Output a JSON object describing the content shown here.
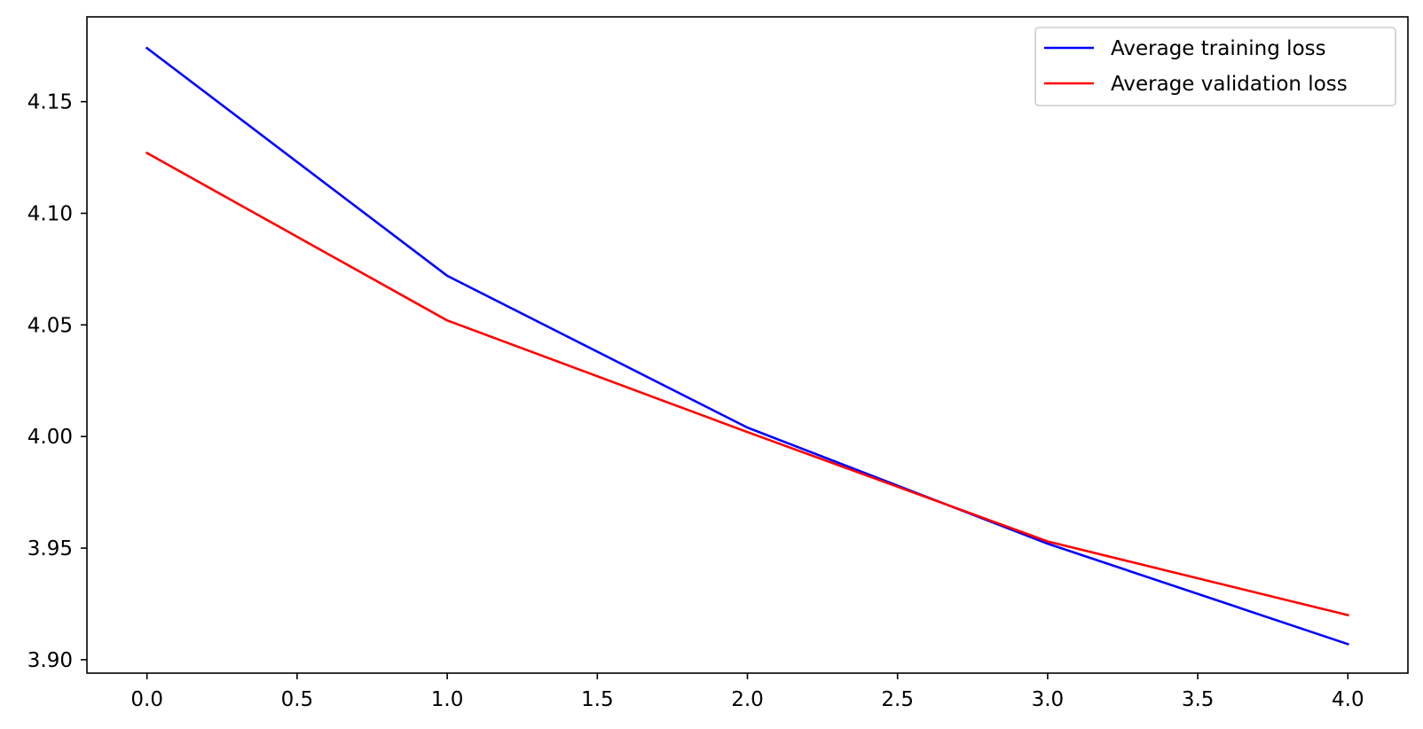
{
  "chart_data": {
    "type": "line",
    "title": "",
    "xlabel": "",
    "ylabel": "",
    "x": [
      0,
      1,
      2,
      3,
      4
    ],
    "series": [
      {
        "name": "Average training loss",
        "color": "#0000ff",
        "values": [
          4.174,
          4.072,
          4.004,
          3.952,
          3.907
        ]
      },
      {
        "name": "Average validation loss",
        "color": "#ff0000",
        "values": [
          4.127,
          4.052,
          4.002,
          3.953,
          3.92
        ]
      }
    ],
    "xlim": [
      -0.2,
      4.2
    ],
    "ylim": [
      3.894,
      4.188
    ],
    "xticks": [
      0.0,
      0.5,
      1.0,
      1.5,
      2.0,
      2.5,
      3.0,
      3.5,
      4.0
    ],
    "xtick_labels": [
      "0.0",
      "0.5",
      "1.0",
      "1.5",
      "2.0",
      "2.5",
      "3.0",
      "3.5",
      "4.0"
    ],
    "yticks": [
      3.9,
      3.95,
      4.0,
      4.05,
      4.1,
      4.15
    ],
    "ytick_labels": [
      "3.90",
      "3.95",
      "4.00",
      "4.05",
      "4.10",
      "4.15"
    ],
    "grid": false,
    "legend_position": "top-right"
  }
}
